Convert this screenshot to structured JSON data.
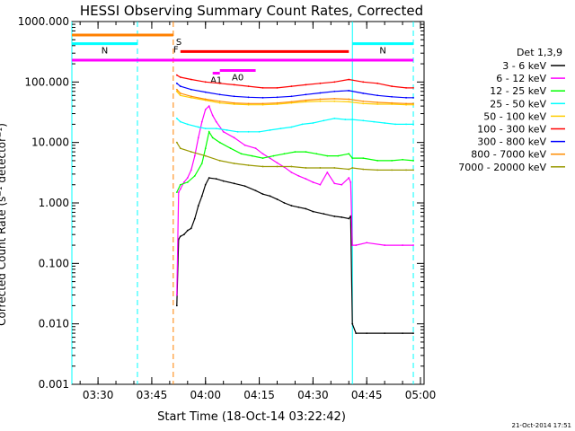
{
  "chart_data": {
    "type": "line",
    "title": "HESSI Observing Summary Count Rates, Corrected",
    "xlabel": "Start Time (18-Oct-14 03:22:42)",
    "ylabel": "Corrected Count Rate (s⁻¹ detector⁻¹)",
    "yscale": "log",
    "ylim": [
      0.001,
      1000
    ],
    "xlim": [
      "03:22:42",
      "05:01:00"
    ],
    "x_ticks": [
      "03:30",
      "03:45",
      "04:00",
      "04:15",
      "04:30",
      "04:45",
      "05:00"
    ],
    "y_ticks": [
      "0.001",
      "0.010",
      "0.100",
      "1.000",
      "10.000",
      "100.000",
      "1000.000"
    ],
    "date_stamp": "21-Oct-2014 17:51",
    "legend": {
      "title": "Det 1,3,9",
      "placement": "right",
      "entries": [
        {
          "label": "3 - 6 keV",
          "color": "#000000"
        },
        {
          "label": "6 - 12 keV",
          "color": "#ff00ff"
        },
        {
          "label": "12 - 25 keV",
          "color": "#00ff00"
        },
        {
          "label": "25 - 50 keV",
          "color": "#00ffff"
        },
        {
          "label": "50 - 100 keV",
          "color": "#ffcc00"
        },
        {
          "label": "100 - 300 keV",
          "color": "#ff0000"
        },
        {
          "label": "300 - 800 keV",
          "color": "#0000ff"
        },
        {
          "label": "800 - 7000 keV",
          "color": "#ff8c00"
        },
        {
          "label": "7000 - 20000 keV",
          "color": "#999900"
        }
      ]
    },
    "vertical_markers": [
      {
        "time": "03:22:42",
        "color": "#00ffff",
        "style": "solid"
      },
      {
        "time": "03:41",
        "color": "#00ffff",
        "style": "dashed"
      },
      {
        "time": "03:51",
        "color": "#ff8000",
        "style": "dashed"
      },
      {
        "time": "04:41",
        "color": "#00ffff",
        "style": "solid"
      },
      {
        "time": "04:58",
        "color": "#00ffff",
        "style": "dashed"
      }
    ],
    "flag_bars": [
      {
        "label": "S",
        "color": "#ff8000",
        "start": "03:22:42",
        "end": "03:51",
        "level": 600
      },
      {
        "label": "N",
        "color": "#00ffff",
        "start": "03:22:42",
        "end": "03:41",
        "level": 430
      },
      {
        "label": "N",
        "color": "#00ffff",
        "start": "04:41",
        "end": "04:58",
        "level": 430
      },
      {
        "label": "F",
        "color": "#ff0000",
        "start": "03:53",
        "end": "04:40",
        "level": 320
      },
      {
        "label": "",
        "color": "#ff00ff",
        "start": "03:22:42",
        "end": "04:58",
        "level": 230
      },
      {
        "label": "A0",
        "color": "#ff00ff",
        "start": "04:04",
        "end": "04:14",
        "level": 155
      },
      {
        "label": "A1",
        "color": "#ff00ff",
        "start": "04:02",
        "end": "04:04",
        "level": 140
      }
    ],
    "series": [
      {
        "name": "3 - 6 keV",
        "color": "#000000",
        "x": [
          "03:52",
          "03:52:30",
          "03:53",
          "03:54",
          "03:55",
          "03:56",
          "03:57",
          "03:58",
          "03:59",
          "04:00",
          "04:01",
          "04:03",
          "04:05",
          "04:08",
          "04:11",
          "04:14",
          "04:16",
          "04:18",
          "04:20",
          "04:22",
          "04:24",
          "04:26",
          "04:28",
          "04:30",
          "04:33",
          "04:36",
          "04:38",
          "04:40",
          "04:40:30",
          "04:41",
          "04:42",
          "04:45",
          "04:50",
          "04:55",
          "04:58"
        ],
        "y": [
          0.02,
          0.25,
          0.28,
          0.3,
          0.35,
          0.38,
          0.55,
          0.9,
          1.3,
          2.0,
          2.6,
          2.5,
          2.3,
          2.1,
          1.9,
          1.6,
          1.4,
          1.3,
          1.15,
          1.0,
          0.9,
          0.85,
          0.8,
          0.72,
          0.66,
          0.6,
          0.58,
          0.55,
          0.6,
          0.01,
          0.007,
          0.007,
          0.007,
          0.007,
          0.007
        ]
      },
      {
        "name": "6 - 12 keV",
        "color": "#ff00ff",
        "x": [
          "03:52",
          "03:52:30",
          "03:53",
          "03:54",
          "03:55",
          "03:56",
          "03:57",
          "03:58",
          "03:59",
          "04:00",
          "04:01",
          "04:02",
          "04:03",
          "04:05",
          "04:08",
          "04:11",
          "04:14",
          "04:16",
          "04:18",
          "04:20",
          "04:22",
          "04:24",
          "04:26",
          "04:28",
          "04:30",
          "04:32",
          "04:34",
          "04:36",
          "04:38",
          "04:40",
          "04:40:30",
          "04:41",
          "04:42",
          "04:45",
          "04:50",
          "04:55",
          "04:58"
        ],
        "y": [
          0.03,
          1.5,
          1.7,
          2.2,
          2.6,
          3.5,
          6,
          12,
          22,
          35,
          40,
          28,
          22,
          15,
          12,
          9,
          8,
          6.5,
          5.5,
          4.6,
          3.9,
          3.2,
          2.8,
          2.5,
          2.2,
          2.0,
          3.2,
          2.1,
          2.0,
          2.6,
          2.2,
          0.2,
          0.2,
          0.22,
          0.2,
          0.2,
          0.2
        ]
      },
      {
        "name": "12 - 25 keV",
        "color": "#00ff00",
        "x": [
          "03:52",
          "03:53",
          "03:55",
          "03:57",
          "03:59",
          "04:00",
          "04:01",
          "04:02",
          "04:04",
          "04:07",
          "04:10",
          "04:13",
          "04:16",
          "04:19",
          "04:22",
          "04:25",
          "04:28",
          "04:31",
          "04:34",
          "04:37",
          "04:40",
          "04:41",
          "04:44",
          "04:48",
          "04:52",
          "04:55",
          "04:58"
        ],
        "y": [
          1.5,
          2.0,
          2.2,
          2.8,
          4.5,
          8,
          15,
          12,
          10,
          8,
          6.5,
          6,
          5.5,
          6,
          6.5,
          7,
          7,
          6.5,
          6,
          6,
          6.5,
          5.5,
          5.5,
          5,
          5,
          5.2,
          5
        ]
      },
      {
        "name": "25 - 50 keV",
        "color": "#00ffff",
        "x": [
          "03:52",
          "03:53",
          "03:55",
          "03:58",
          "04:00",
          "04:03",
          "04:06",
          "04:09",
          "04:12",
          "04:15",
          "04:18",
          "04:21",
          "04:24",
          "04:27",
          "04:30",
          "04:33",
          "04:36",
          "04:39",
          "04:41",
          "04:44",
          "04:47",
          "04:50",
          "04:53",
          "04:56",
          "04:58"
        ],
        "y": [
          25,
          22,
          20,
          18,
          17,
          17,
          16,
          15,
          15,
          15,
          16,
          17,
          18,
          20,
          21,
          23,
          25,
          24,
          24,
          23,
          22,
          21,
          20,
          20,
          20
        ]
      },
      {
        "name": "50 - 100 keV",
        "color": "#ffcc00",
        "x": [
          "03:52",
          "03:53",
          "03:56",
          "04:00",
          "04:04",
          "04:08",
          "04:12",
          "04:16",
          "04:20",
          "04:24",
          "04:28",
          "04:32",
          "04:36",
          "04:40",
          "04:44",
          "04:48",
          "04:52",
          "04:56",
          "04:58"
        ],
        "y": [
          70,
          60,
          55,
          50,
          45,
          43,
          42,
          42,
          43,
          45,
          47,
          48,
          48,
          47,
          44,
          43,
          43,
          42,
          42
        ]
      },
      {
        "name": "100 - 300 keV",
        "color": "#ff0000",
        "x": [
          "03:52",
          "03:53",
          "03:56",
          "04:00",
          "04:04",
          "04:08",
          "04:12",
          "04:16",
          "04:20",
          "04:24",
          "04:28",
          "04:32",
          "04:36",
          "04:40",
          "04:44",
          "04:48",
          "04:52",
          "04:56",
          "04:58"
        ],
        "y": [
          130,
          120,
          110,
          100,
          95,
          90,
          85,
          80,
          80,
          85,
          90,
          95,
          100,
          110,
          100,
          95,
          85,
          80,
          80
        ]
      },
      {
        "name": "300 - 800 keV",
        "color": "#0000ff",
        "x": [
          "03:52",
          "03:53",
          "03:56",
          "04:00",
          "04:04",
          "04:08",
          "04:12",
          "04:16",
          "04:20",
          "04:24",
          "04:28",
          "04:32",
          "04:36",
          "04:40",
          "04:44",
          "04:48",
          "04:52",
          "04:56",
          "04:58"
        ],
        "y": [
          95,
          85,
          75,
          68,
          62,
          58,
          56,
          55,
          56,
          58,
          62,
          66,
          70,
          72,
          65,
          60,
          57,
          55,
          55
        ]
      },
      {
        "name": "800 - 7000 keV",
        "color": "#ff8c00",
        "x": [
          "03:52",
          "03:53",
          "03:56",
          "04:00",
          "04:04",
          "04:08",
          "04:12",
          "04:16",
          "04:20",
          "04:24",
          "04:28",
          "04:32",
          "04:36",
          "04:40",
          "04:44",
          "04:48",
          "04:52",
          "04:56",
          "04:58"
        ],
        "y": [
          75,
          65,
          58,
          52,
          48,
          45,
          44,
          44,
          45,
          47,
          50,
          52,
          53,
          52,
          48,
          46,
          45,
          44,
          44
        ]
      },
      {
        "name": "7000 - 20000 keV",
        "color": "#999900",
        "x": [
          "03:52",
          "03:53",
          "03:56",
          "04:00",
          "04:04",
          "04:08",
          "04:12",
          "04:16",
          "04:20",
          "04:24",
          "04:28",
          "04:32",
          "04:36",
          "04:40",
          "04:41",
          "04:44",
          "04:48",
          "04:52",
          "04:56",
          "04:58"
        ],
        "y": [
          10,
          8,
          7,
          6,
          5,
          4.5,
          4.2,
          4,
          4,
          4,
          3.8,
          3.8,
          3.8,
          3.6,
          3.8,
          3.6,
          3.5,
          3.5,
          3.5,
          3.5
        ]
      }
    ]
  }
}
